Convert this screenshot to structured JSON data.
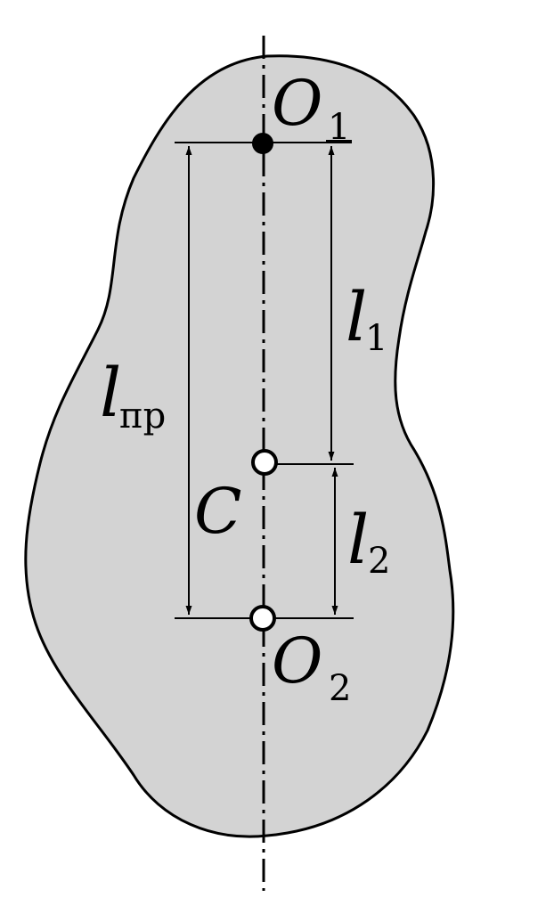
{
  "colors": {
    "body_fill": "#d3d3d3",
    "stroke": "#000000",
    "background": "#ffffff"
  },
  "labels": {
    "o1": {
      "main": "O",
      "sub": "1"
    },
    "o2": {
      "main": "O",
      "sub": "2"
    },
    "c": {
      "main": "C"
    },
    "l1": {
      "main": "l",
      "sub": "1"
    },
    "l2": {
      "main": "l",
      "sub": "2"
    },
    "lpr": {
      "main": "l",
      "sub": "пр"
    }
  },
  "points": {
    "o1": "filled",
    "c": "open",
    "o2": "open"
  }
}
